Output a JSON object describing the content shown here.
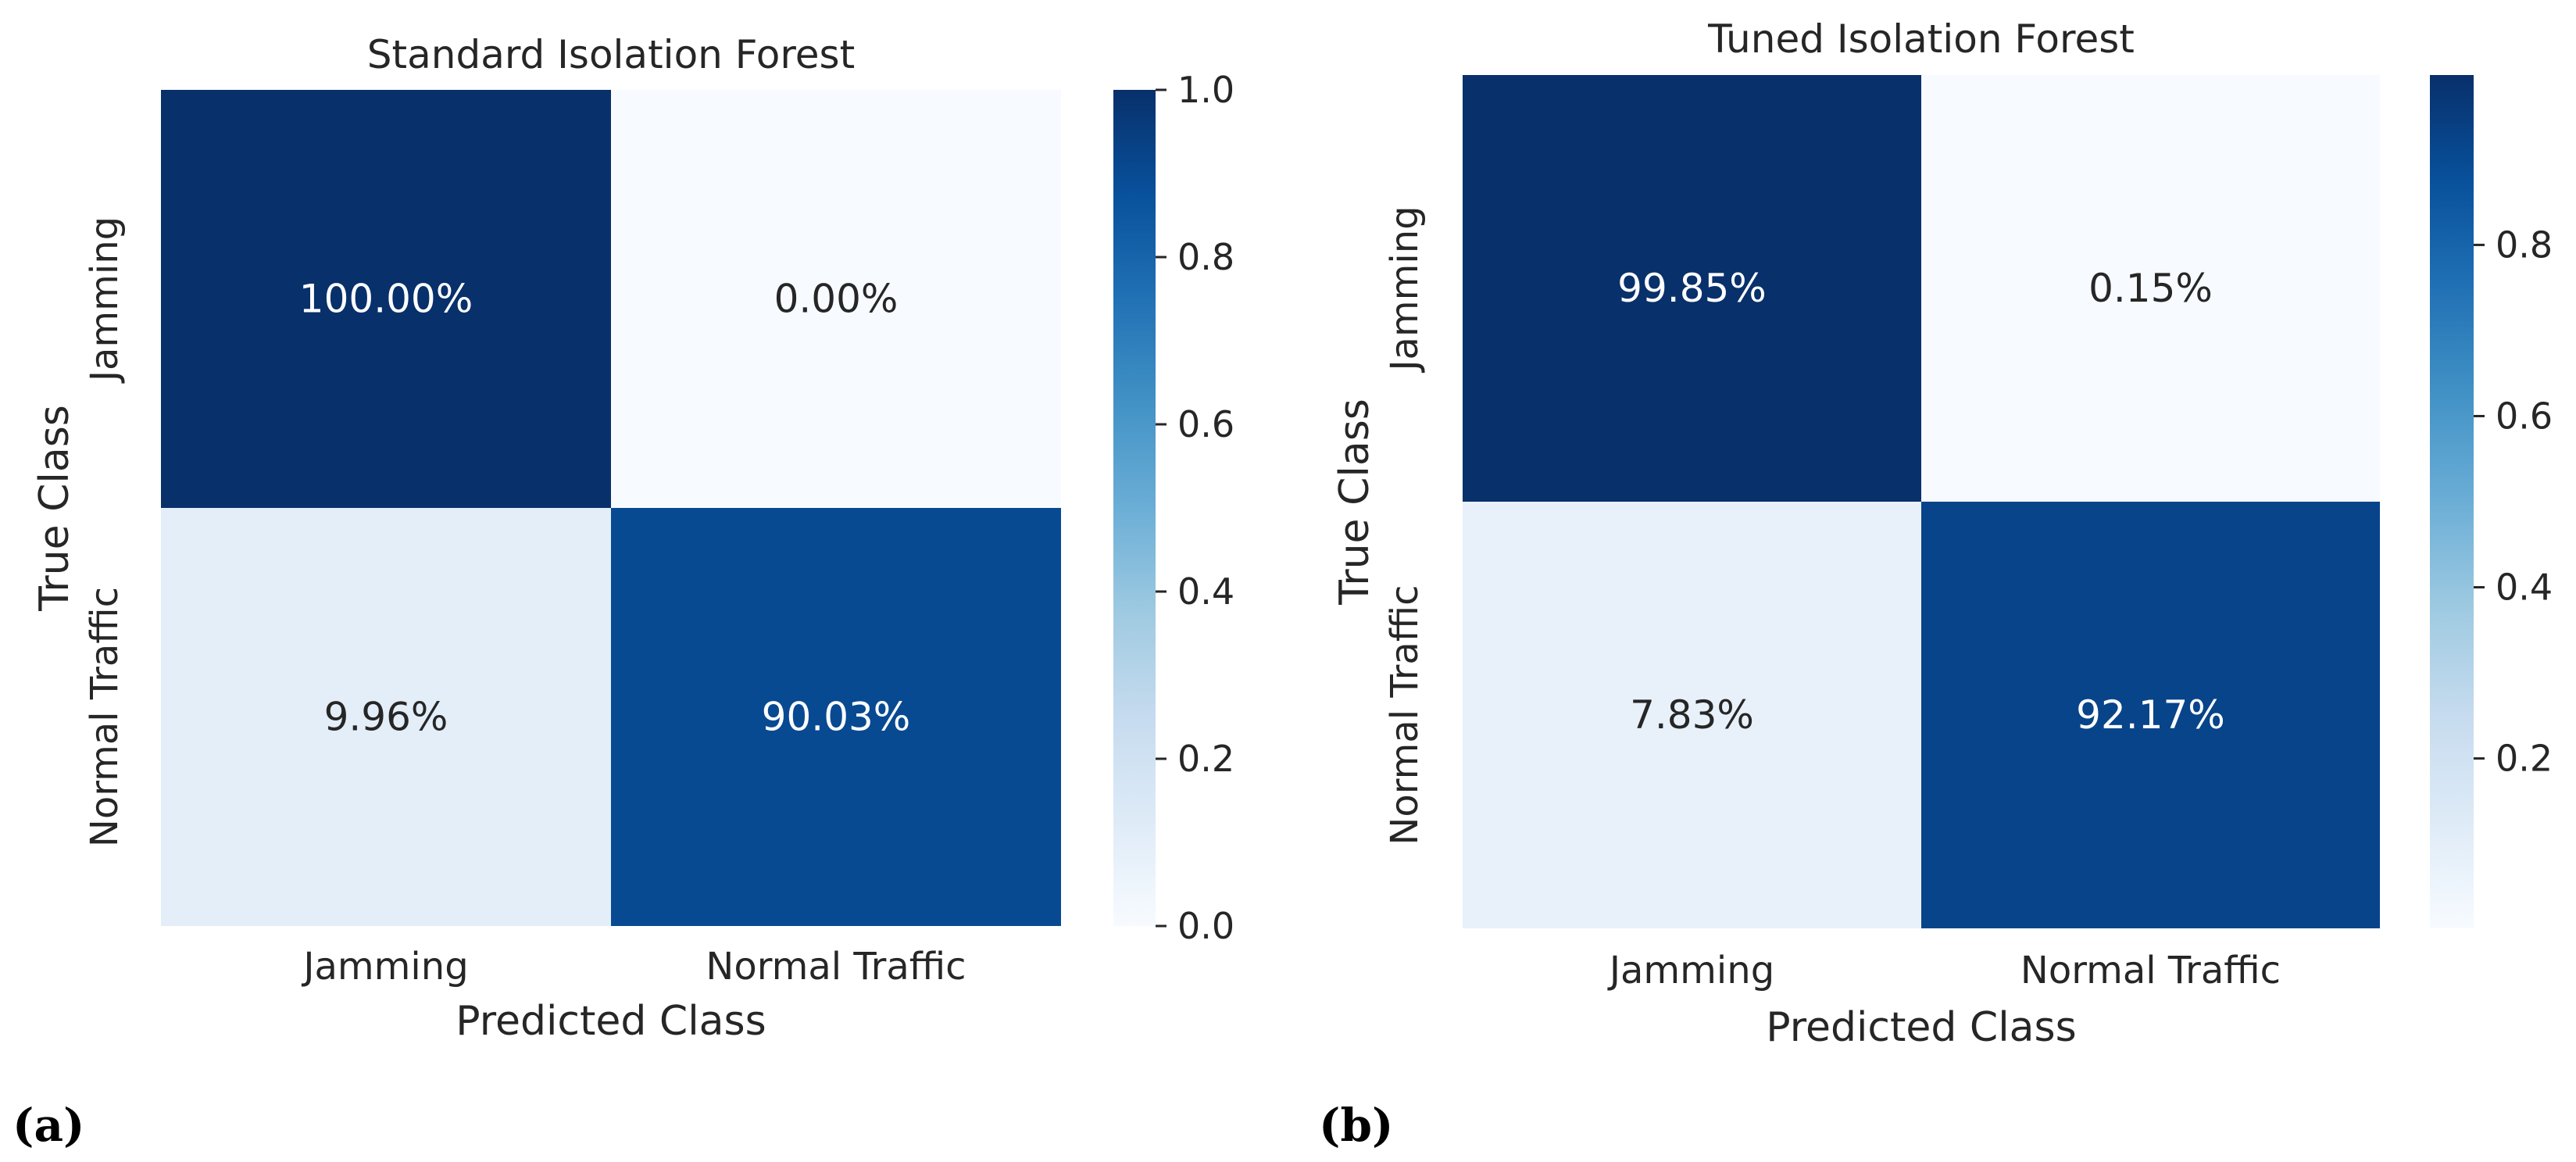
{
  "chart_data": [
    {
      "type": "heatmap",
      "panel_label": "(a)",
      "title": "Standard Isolation Forest",
      "xlabel": "Predicted Class",
      "ylabel": "True Class",
      "x_categories": [
        "Jamming",
        "Normal Traffic"
      ],
      "y_categories": [
        "Jamming",
        "Normal Traffic"
      ],
      "values": [
        [
          1.0,
          0.0
        ],
        [
          0.0996,
          0.9003
        ]
      ],
      "cell_labels": [
        [
          "100.00%",
          "0.00%"
        ],
        [
          "9.96%",
          "90.03%"
        ]
      ],
      "colormap": "Blues",
      "colorbar": {
        "vmin": 0.0,
        "vmax": 1.0,
        "ticks": [
          0.0,
          0.2,
          0.4,
          0.6,
          0.8,
          1.0
        ],
        "tick_labels": [
          "0.0",
          "0.2",
          "0.4",
          "0.6",
          "0.8",
          "1.0"
        ]
      }
    },
    {
      "type": "heatmap",
      "panel_label": "(b)",
      "title": "Tuned Isolation Forest",
      "xlabel": "Predicted Class",
      "ylabel": "True Class",
      "x_categories": [
        "Jamming",
        "Normal Traffic"
      ],
      "y_categories": [
        "Jamming",
        "Normal Traffic"
      ],
      "values": [
        [
          0.9985,
          0.0015
        ],
        [
          0.0783,
          0.9217
        ]
      ],
      "cell_labels": [
        [
          "99.85%",
          "0.15%"
        ],
        [
          "7.83%",
          "92.17%"
        ]
      ],
      "colormap": "Blues",
      "colorbar": {
        "vmin": 0.0015,
        "vmax": 0.9985,
        "ticks": [
          0.2,
          0.4,
          0.6,
          0.8
        ],
        "tick_labels": [
          "0.2",
          "0.4",
          "0.6",
          "0.8"
        ]
      }
    }
  ],
  "colors": {
    "blues_stops": [
      "#f7fbff",
      "#deebf7",
      "#c6dbef",
      "#9ecae1",
      "#6baed6",
      "#4292c6",
      "#2171b5",
      "#08519c",
      "#08306b"
    ],
    "text_dark": "#262626",
    "text_light": "#ffffff"
  }
}
